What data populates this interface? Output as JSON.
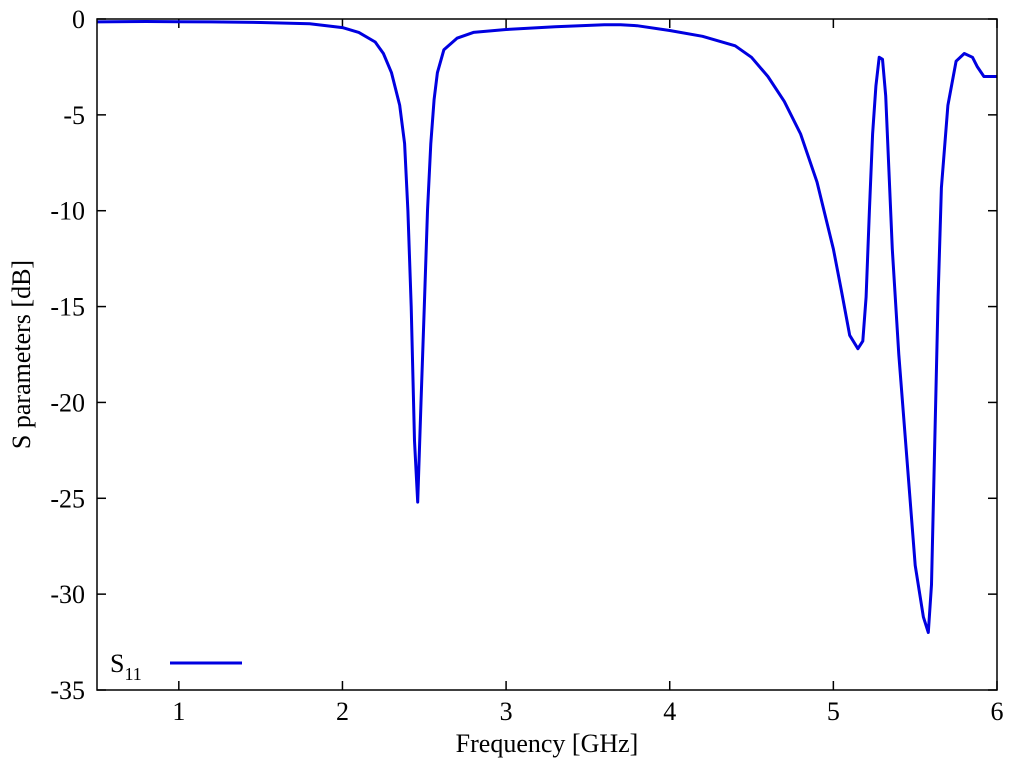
{
  "chart_data": {
    "type": "line",
    "xlabel": "Frequency [GHz]",
    "ylabel": "S parameters [dB]",
    "xlim": [
      0.5,
      6
    ],
    "ylim": [
      -35,
      0
    ],
    "x_ticks": [
      1,
      2,
      3,
      4,
      5,
      6
    ],
    "x_tick_labels": [
      "1",
      "2",
      "3",
      "4",
      "5",
      "6"
    ],
    "y_ticks": [
      0,
      -5,
      -10,
      -15,
      -20,
      -25,
      -30,
      -35
    ],
    "y_tick_labels": [
      "0",
      "-5",
      "-10",
      "-15",
      "-20",
      "-25",
      "-30",
      "-35"
    ],
    "grid": false,
    "legend_position": "bottom-left",
    "series": [
      {
        "name_main": "S",
        "name_sub": "11",
        "color": "#0000e0",
        "x": [
          0.5,
          0.8,
          1.0,
          1.2,
          1.5,
          1.8,
          2.0,
          2.1,
          2.2,
          2.25,
          2.3,
          2.35,
          2.38,
          2.4,
          2.42,
          2.44,
          2.46,
          2.48,
          2.5,
          2.52,
          2.54,
          2.56,
          2.58,
          2.62,
          2.7,
          2.8,
          3.0,
          3.3,
          3.6,
          3.7,
          3.8,
          4.0,
          4.2,
          4.4,
          4.5,
          4.6,
          4.7,
          4.8,
          4.9,
          5.0,
          5.05,
          5.1,
          5.15,
          5.18,
          5.2,
          5.22,
          5.24,
          5.26,
          5.28,
          5.3,
          5.32,
          5.34,
          5.36,
          5.4,
          5.45,
          5.5,
          5.55,
          5.58,
          5.6,
          5.62,
          5.64,
          5.66,
          5.7,
          5.75,
          5.8,
          5.85,
          5.88,
          5.92,
          5.96,
          6.0
        ],
        "y": [
          -0.15,
          -0.13,
          -0.14,
          -0.15,
          -0.18,
          -0.25,
          -0.45,
          -0.7,
          -1.2,
          -1.8,
          -2.8,
          -4.5,
          -6.5,
          -10,
          -15,
          -22,
          -25.2,
          -20,
          -15,
          -10,
          -6.5,
          -4.2,
          -2.8,
          -1.6,
          -1.0,
          -0.7,
          -0.55,
          -0.4,
          -0.3,
          -0.3,
          -0.35,
          -0.6,
          -0.9,
          -1.4,
          -2.0,
          -3.0,
          -4.3,
          -6.0,
          -8.5,
          -12,
          -14.2,
          -16.5,
          -17.2,
          -16.8,
          -14.5,
          -10,
          -6,
          -3.5,
          -2.0,
          -2.1,
          -4,
          -8,
          -12,
          -17.5,
          -23,
          -28.5,
          -31.2,
          -32,
          -29.5,
          -22,
          -14.5,
          -8.8,
          -4.5,
          -2.2,
          -1.8,
          -2.0,
          -2.5,
          -3.0,
          -3.0,
          -3.0
        ]
      }
    ]
  }
}
